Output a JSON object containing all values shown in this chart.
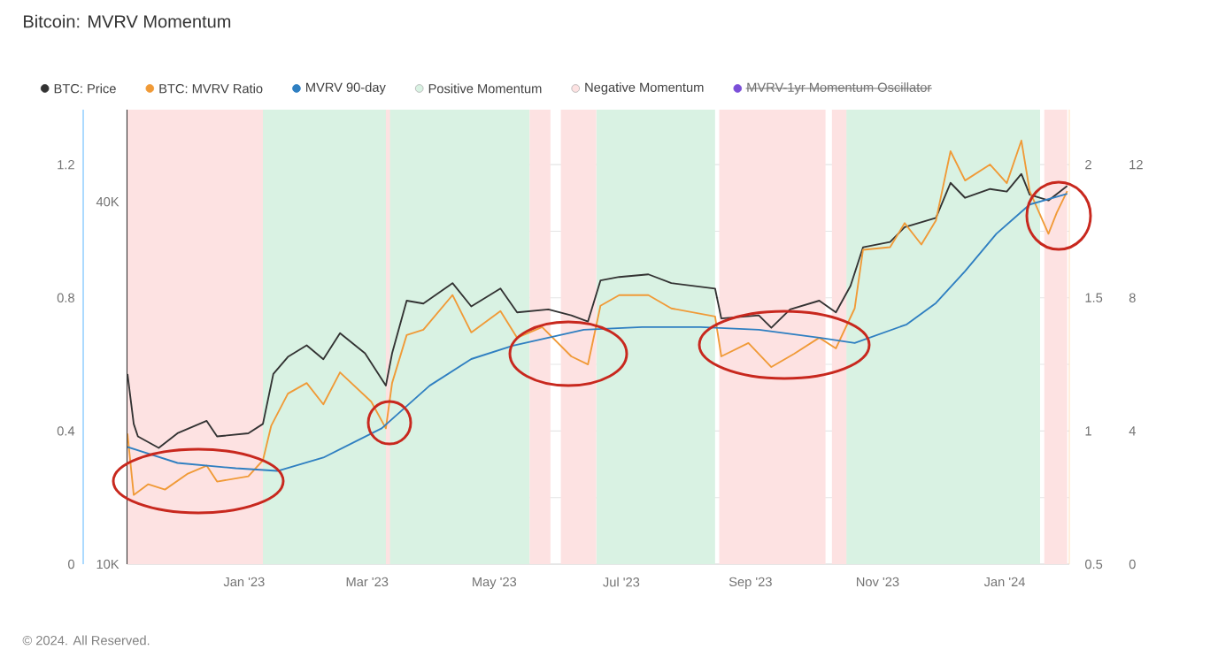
{
  "chart_data": {
    "type": "line",
    "title": "Bitcoin: MVRV Momentum",
    "annotations": [
      "MVRV-1yr Momentum Oscillator",
      "© 2024. All Reserved.",
      "0",
      "4",
      "8",
      "12"
    ],
    "xlim": [
      "2022-11-06",
      "2024-02-01"
    ],
    "xticks": [
      {
        "value": "2023-01-01",
        "label": "Jan '23"
      },
      {
        "value": "2023-03-01",
        "label": "Mar '23"
      },
      {
        "value": "2023-05-01",
        "label": "May '23"
      },
      {
        "value": "2023-07-01",
        "label": "Jul '23"
      },
      {
        "value": "2023-09-01",
        "label": "Sep '23"
      },
      {
        "value": "2023-11-01",
        "label": "Nov '23"
      },
      {
        "value": "2024-01-01",
        "label": "Jan '24"
      }
    ],
    "ylim": [
      10000,
      56900
    ],
    "yticks": [
      {
        "value": 10000,
        "label": "10K"
      },
      {
        "value": 40000,
        "label": "40K"
      }
    ],
    "log": "y",
    "y2lim": [
      0.5,
      2.206
    ],
    "y2ticks": [
      0.5,
      1,
      1.5,
      2
    ],
    "y3lim": [
      0,
      1.365
    ],
    "y3ticks": [
      0,
      {
        "value": 0.2,
        "label": null
      },
      0.4,
      {
        "value": 0.6,
        "label": null
      },
      0.8,
      {
        "value": 1.0,
        "label": null
      },
      1.2
    ],
    "grid": "y",
    "legend": "top left",
    "series": [
      {
        "name": "BTC: Price",
        "color": "#333333",
        "x": [
          "2022-11-06",
          "2022-11-09",
          "2022-11-11",
          "2022-11-21",
          "2022-11-30",
          "2022-12-14",
          "2022-12-19",
          "2023-01-03",
          "2023-01-10",
          "2023-01-15",
          "2023-01-22",
          "2023-01-31",
          "2023-02-08",
          "2023-02-16",
          "2023-02-28",
          "2023-03-10",
          "2023-03-13",
          "2023-03-20",
          "2023-03-28",
          "2023-04-11",
          "2023-04-20",
          "2023-05-04",
          "2023-05-12",
          "2023-05-27",
          "2023-06-07",
          "2023-06-15",
          "2023-06-21",
          "2023-06-30",
          "2023-07-14",
          "2023-07-25",
          "2023-08-15",
          "2023-08-18",
          "2023-09-05",
          "2023-09-11",
          "2023-09-20",
          "2023-10-04",
          "2023-10-12",
          "2023-10-19",
          "2023-10-25",
          "2023-11-07",
          "2023-11-14",
          "2023-11-29",
          "2023-12-06",
          "2023-12-13",
          "2023-12-25",
          "2024-01-02",
          "2024-01-09",
          "2024-01-13",
          "2024-01-22",
          "2024-01-31"
        ],
        "values": [
          20700,
          17100,
          16300,
          15600,
          16500,
          17300,
          16300,
          16500,
          17100,
          20700,
          22100,
          23100,
          21900,
          24200,
          22400,
          19800,
          22400,
          27400,
          27100,
          29300,
          26800,
          28700,
          26200,
          26500,
          25900,
          25300,
          29600,
          30000,
          30300,
          29300,
          28700,
          25600,
          25900,
          24700,
          26500,
          27400,
          26200,
          29000,
          33600,
          34300,
          36300,
          37600,
          43000,
          40600,
          42000,
          41600,
          44500,
          41100,
          40200,
          42500
        ]
      },
      {
        "name": "BTC: MVRV Ratio",
        "color": "#f09a37",
        "axis": "y2",
        "x": [
          "2022-11-06",
          "2022-11-09",
          "2022-11-16",
          "2022-11-24",
          "2022-12-05",
          "2022-12-14",
          "2022-12-19",
          "2023-01-03",
          "2023-01-10",
          "2023-01-14",
          "2023-01-22",
          "2023-01-31",
          "2023-02-08",
          "2023-02-16",
          "2023-03-03",
          "2023-03-10",
          "2023-03-13",
          "2023-03-20",
          "2023-03-28",
          "2023-04-11",
          "2023-04-20",
          "2023-05-04",
          "2023-05-12",
          "2023-05-24",
          "2023-06-07",
          "2023-06-15",
          "2023-06-21",
          "2023-06-30",
          "2023-07-14",
          "2023-07-25",
          "2023-08-15",
          "2023-08-18",
          "2023-08-31",
          "2023-09-11",
          "2023-09-22",
          "2023-10-04",
          "2023-10-12",
          "2023-10-21",
          "2023-10-25",
          "2023-11-07",
          "2023-11-14",
          "2023-11-22",
          "2023-11-29",
          "2023-12-06",
          "2023-12-13",
          "2023-12-25",
          "2024-01-02",
          "2024-01-09",
          "2024-01-13",
          "2024-01-22",
          "2024-01-26",
          "2024-01-31"
        ],
        "values": [
          0.99,
          0.76,
          0.8,
          0.78,
          0.84,
          0.87,
          0.81,
          0.83,
          0.89,
          1.02,
          1.14,
          1.18,
          1.1,
          1.22,
          1.11,
          1.01,
          1.18,
          1.36,
          1.38,
          1.51,
          1.37,
          1.45,
          1.35,
          1.39,
          1.28,
          1.25,
          1.47,
          1.51,
          1.51,
          1.46,
          1.43,
          1.28,
          1.33,
          1.24,
          1.29,
          1.35,
          1.31,
          1.46,
          1.68,
          1.69,
          1.78,
          1.7,
          1.79,
          2.05,
          1.94,
          2.0,
          1.93,
          2.09,
          1.9,
          1.74,
          1.82,
          1.9
        ]
      },
      {
        "name": "MVRV 90-day",
        "color": "#2f7fc1",
        "axis": "y2",
        "x": [
          "2022-11-06",
          "2022-11-30",
          "2022-12-28",
          "2023-01-17",
          "2023-02-08",
          "2023-03-08",
          "2023-03-31",
          "2023-04-20",
          "2023-05-10",
          "2023-06-13",
          "2023-07-11",
          "2023-08-08",
          "2023-09-05",
          "2023-10-04",
          "2023-10-21",
          "2023-11-15",
          "2023-11-29",
          "2023-12-13",
          "2023-12-28",
          "2024-01-13",
          "2024-01-31"
        ],
        "values": [
          0.94,
          0.88,
          0.86,
          0.85,
          0.9,
          1.01,
          1.17,
          1.27,
          1.32,
          1.38,
          1.39,
          1.39,
          1.38,
          1.35,
          1.33,
          1.4,
          1.48,
          1.6,
          1.74,
          1.85,
          1.89
        ]
      }
    ],
    "bands": [
      {
        "axis": "x",
        "from": "2023-01-10",
        "to": "2023-05-18",
        "label": "Positive Momentum",
        "color": "#d9f2e3"
      },
      {
        "axis": "x",
        "from": "2023-06-19",
        "to": "2023-08-15",
        "color": "#d9f2e3"
      },
      {
        "axis": "x",
        "from": "2023-10-17",
        "to": "2024-01-18",
        "color": "#d9f2e3"
      },
      {
        "axis": "x",
        "from": "2022-11-06",
        "to": "2023-01-10",
        "label": "Negative Momentum",
        "color": "#fde2e2"
      },
      {
        "axis": "x",
        "from": "2023-03-10",
        "to": "2023-03-12",
        "color": "#fde2e2"
      },
      {
        "axis": "x",
        "from": "2023-05-18",
        "to": "2023-05-28",
        "color": "#fde2e2"
      },
      {
        "axis": "x",
        "from": "2023-06-02",
        "to": "2023-06-19",
        "color": "#fde2e2"
      },
      {
        "axis": "x",
        "from": "2023-08-17",
        "to": "2023-10-07",
        "color": "#fde2e2"
      },
      {
        "axis": "x",
        "from": "2023-10-10",
        "to": "2023-10-17",
        "color": "#fde2e2"
      },
      {
        "axis": "x",
        "from": "2024-01-20",
        "to": "2024-01-31",
        "color": "#fde2e2"
      }
    ]
  }
}
